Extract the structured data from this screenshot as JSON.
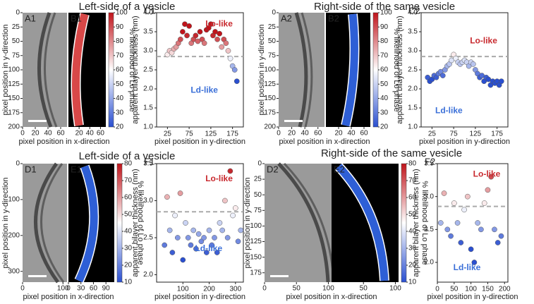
{
  "headings": [
    "Left-side of a vesicle",
    "Right-side of the same vesicle",
    "Left-side of a vesicle",
    "Right-side of the same vesicle"
  ],
  "image_panels": [
    {
      "letters": [
        "A1",
        "B1"
      ],
      "ylabel": "pixel position in y-direction",
      "xlabel": "pixel position in x-direction",
      "ylim": [
        0,
        200
      ],
      "yticks": [
        0,
        25,
        50,
        75,
        100,
        125,
        150,
        175,
        200
      ],
      "xlim": [
        0,
        70
      ],
      "xticks_image": [
        0,
        20,
        40,
        60
      ],
      "xticks_map": [
        20,
        40,
        60
      ],
      "clim": [
        20,
        100
      ],
      "colorbar_ticks": [
        20,
        30,
        40,
        50,
        60,
        70,
        80,
        90,
        100
      ],
      "colorbar_label": "% likelihood of Lo phase"
    },
    {
      "letters": [
        "A2",
        "B2"
      ],
      "ylabel": "pixel position in y-direction",
      "xlabel": "pixel position in x-direction",
      "ylim": [
        0,
        200
      ],
      "yticks": [
        0,
        25,
        50,
        75,
        100,
        125,
        150,
        175,
        200
      ],
      "xlim": [
        0,
        70
      ],
      "xticks_image": [
        0,
        20,
        40,
        60
      ],
      "xticks_map": [
        20,
        40,
        60
      ],
      "clim": [
        20,
        100
      ],
      "colorbar_ticks": [
        20,
        30,
        40,
        50,
        60,
        70,
        80,
        90,
        100
      ],
      "colorbar_label": "% likelihood of Lo phase"
    },
    {
      "letters": [
        "D1",
        "E1"
      ],
      "ylabel": "pixel position in y-direction",
      "xlabel": "pixel position in x-direction",
      "ylim": [
        0,
        330
      ],
      "yticks": [
        0,
        100,
        200,
        300
      ],
      "xlim": [
        0,
        110
      ],
      "xticks_image": [
        0,
        100
      ],
      "xticks_map": [
        0,
        30,
        60,
        90
      ],
      "clim": [
        10,
        80
      ],
      "colorbar_ticks": [
        10,
        20,
        30,
        40,
        50,
        60,
        70,
        80
      ],
      "colorbar_label": "% likelihood of Lo phase"
    },
    {
      "letters": [
        "D2",
        "E2"
      ],
      "ylabel": "pixel position in y-direction",
      "xlabel": "pixel position in x-direction",
      "ylim": [
        0,
        190
      ],
      "yticks": [
        0,
        25,
        50,
        75,
        100,
        125,
        150,
        175
      ],
      "xlim": [
        0,
        105
      ],
      "xticks_image": [
        0,
        50,
        100
      ],
      "xticks_map": [
        50,
        100
      ],
      "clim": [
        10,
        80
      ],
      "colorbar_ticks": [
        10,
        20,
        30,
        40,
        50,
        60,
        70,
        80
      ],
      "colorbar_label": "% likelihood of Lo phase"
    }
  ],
  "chart_data": [
    {
      "type": "scatter",
      "label": "C1",
      "xlabel": "pixel position in y-direction",
      "ylabel": "apparent bilayer thickness (nm)",
      "x": [
        25,
        30,
        35,
        40,
        45,
        50,
        55,
        60,
        65,
        70,
        75,
        80,
        85,
        90,
        95,
        100,
        105,
        110,
        115,
        120,
        125,
        130,
        135,
        140,
        145,
        150,
        155,
        160,
        165,
        170,
        175,
        180,
        185
      ],
      "values": [
        2.9,
        3.0,
        2.95,
        3.05,
        3.1,
        3.2,
        3.3,
        3.5,
        3.7,
        3.4,
        3.65,
        3.2,
        3.3,
        3.4,
        3.25,
        3.5,
        3.3,
        3.2,
        3.55,
        3.6,
        3.7,
        3.4,
        3.5,
        3.3,
        3.45,
        3.1,
        3.3,
        3.2,
        3.0,
        2.8,
        2.6,
        2.5,
        2.2
      ],
      "xlim": [
        0,
        200
      ],
      "xticks": [
        25,
        75,
        125,
        175
      ],
      "ylim": [
        1.0,
        4.0
      ],
      "yticks": [
        {
          "value": 1.0,
          "label": "1.0"
        },
        1.5,
        {
          "value": 2.0,
          "label": "2.0"
        },
        2.5,
        {
          "value": 3.0,
          "label": "3.0"
        },
        3.5,
        {
          "value": 4.0,
          "label": "4.0"
        }
      ],
      "reference_line": 2.85,
      "annotations": [
        {
          "text": "Lo-like",
          "color": "#c8282d"
        },
        {
          "text": "Ld-like",
          "color": "#3a6fd8"
        }
      ]
    },
    {
      "type": "scatter",
      "label": "C2",
      "xlabel": "pixel position in y-direction",
      "ylabel": "apparent bilayer thickness (nm)",
      "x": [
        15,
        20,
        25,
        30,
        35,
        40,
        45,
        50,
        55,
        60,
        65,
        70,
        75,
        80,
        85,
        90,
        95,
        100,
        105,
        110,
        115,
        120,
        125,
        130,
        135,
        140,
        145,
        150,
        155,
        160,
        165,
        170,
        175,
        180,
        185
      ],
      "values": [
        2.3,
        2.2,
        2.25,
        2.35,
        2.3,
        2.4,
        2.45,
        2.35,
        2.5,
        2.6,
        2.65,
        2.75,
        2.9,
        2.8,
        2.7,
        2.65,
        2.7,
        2.75,
        2.7,
        2.6,
        2.7,
        2.65,
        2.5,
        2.4,
        2.3,
        2.35,
        2.2,
        2.3,
        2.25,
        2.1,
        2.2,
        2.15,
        2.2,
        2.1,
        2.2
      ],
      "xlim": [
        0,
        200
      ],
      "xticks": [
        25,
        75,
        125,
        175
      ],
      "ylim": [
        1.0,
        4.0
      ],
      "yticks": [
        {
          "value": 1.0,
          "label": "1.0"
        },
        1.5,
        {
          "value": 2.0,
          "label": "2.0"
        },
        2.5,
        {
          "value": 3.0,
          "label": "3.0"
        },
        3.5,
        {
          "value": 4.0,
          "label": "4.0"
        }
      ],
      "reference_line": 2.85,
      "annotations": [
        {
          "text": "Lo-like",
          "color": "#c8282d"
        },
        {
          "text": "Ld-like",
          "color": "#3a6fd8"
        }
      ]
    },
    {
      "type": "scatter",
      "label": "F1",
      "xlabel": "pixel position in y-direction",
      "ylabel": "apparent bilayer thickness (nm)",
      "x": [
        30,
        40,
        50,
        60,
        70,
        80,
        90,
        100,
        110,
        120,
        130,
        140,
        150,
        160,
        170,
        180,
        190,
        200,
        210,
        220,
        230,
        240,
        250,
        260,
        270,
        280,
        290,
        300,
        310,
        320
      ],
      "values": [
        2.4,
        3.05,
        2.6,
        2.3,
        2.8,
        2.5,
        3.1,
        2.2,
        2.7,
        2.5,
        2.4,
        2.6,
        2.35,
        2.55,
        2.45,
        2.5,
        2.3,
        2.6,
        2.4,
        2.5,
        2.3,
        2.7,
        2.6,
        3.0,
        2.5,
        3.4,
        2.8,
        2.9,
        2.45,
        2.6
      ],
      "xlim": [
        0,
        330
      ],
      "xticks": [
        100,
        200,
        300
      ],
      "ylim": [
        1.9,
        3.5
      ],
      "yticks": [
        {
          "value": 2.0,
          "label": "2.0"
        },
        2.5,
        {
          "value": 3.0,
          "label": "3.0"
        },
        3.5
      ],
      "reference_line": 2.85,
      "annotations": [
        {
          "text": "Lo-like",
          "color": "#c8282d"
        },
        {
          "text": "Ld-like",
          "color": "#3a6fd8"
        }
      ]
    },
    {
      "type": "scatter",
      "label": "F2",
      "xlabel": "pixel position in y-direction",
      "ylabel": "apparent bilayer thickness (nm)",
      "x": [
        10,
        20,
        30,
        40,
        50,
        60,
        70,
        80,
        90,
        100,
        110,
        120,
        130,
        140,
        150,
        160,
        170,
        180,
        190
      ],
      "values": [
        2.6,
        3.05,
        2.5,
        2.4,
        2.9,
        2.6,
        2.3,
        2.8,
        3.0,
        2.2,
        2.0,
        2.6,
        2.5,
        2.9,
        3.1,
        3.3,
        2.5,
        2.3,
        2.4
      ],
      "xlim": [
        0,
        210
      ],
      "xticks": [
        0,
        50,
        100,
        150,
        200
      ],
      "ylim": [
        1.7,
        3.5
      ],
      "yticks": [
        {
          "value": 2.0,
          "label": "2.0"
        },
        2.5,
        {
          "value": 3.0,
          "label": "3.0"
        },
        3.5
      ],
      "reference_line": 2.85,
      "annotations": [
        {
          "text": "Lo-like",
          "color": "#c8282d"
        },
        {
          "text": "Ld-like",
          "color": "#3a6fd8"
        }
      ]
    }
  ]
}
